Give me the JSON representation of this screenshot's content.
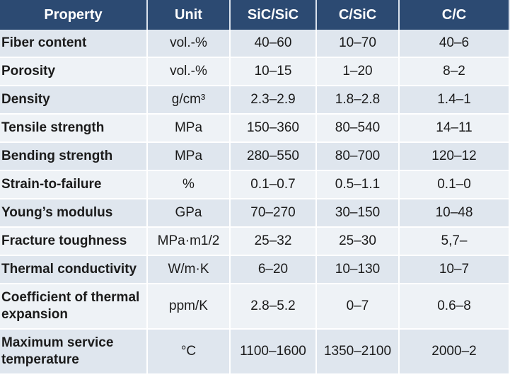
{
  "table": {
    "headers": [
      "Property",
      "Unit",
      "SiC/SiC",
      "C/SiC",
      "C/C"
    ],
    "rows": [
      {
        "property": "Fiber content",
        "unit": "vol.-%",
        "sic_sic": "40–60",
        "c_sic": "10–70",
        "c_c": "40–6"
      },
      {
        "property": "Porosity",
        "unit": "vol.-%",
        "sic_sic": "10–15",
        "c_sic": "1–20",
        "c_c": "8–2"
      },
      {
        "property": "Density",
        "unit": "g/cm³",
        "sic_sic": "2.3–2.9",
        "c_sic": "1.8–2.8",
        "c_c": "1.4–1"
      },
      {
        "property": "Tensile strength",
        "unit": "MPa",
        "sic_sic": "150–360",
        "c_sic": "80–540",
        "c_c": "14–11"
      },
      {
        "property": "Bending strength",
        "unit": "MPa",
        "sic_sic": "280–550",
        "c_sic": "80–700",
        "c_c": "120–12"
      },
      {
        "property": "Strain-to-failure",
        "unit": "%",
        "sic_sic": "0.1–0.7",
        "c_sic": "0.5–1.1",
        "c_c": "0.1–0"
      },
      {
        "property": "Young’s modulus",
        "unit": "GPa",
        "sic_sic": "70–270",
        "c_sic": "30–150",
        "c_c": "10–48"
      },
      {
        "property": "Fracture toughness",
        "unit": "MPa·m1/2",
        "sic_sic": "25–32",
        "c_sic": "25–30",
        "c_c": "5,7–"
      },
      {
        "property": "Thermal conductivity",
        "unit": "W/m·K",
        "sic_sic": "6–20",
        "c_sic": "10–130",
        "c_c": "10–7"
      },
      {
        "property": "Coefficient of thermal expansion",
        "unit": "ppm/K",
        "sic_sic": "2.8–5.2",
        "c_sic": "0–7",
        "c_c": "0.6–8"
      },
      {
        "property": "Maximum service temperature",
        "unit": "°C",
        "sic_sic": "1100–1600",
        "c_sic": "1350–2100",
        "c_c": "2000–2"
      }
    ]
  },
  "colors": {
    "header_bg": "#2c4a72",
    "row_odd": "#dfe6ee",
    "row_even": "#eef2f6"
  }
}
